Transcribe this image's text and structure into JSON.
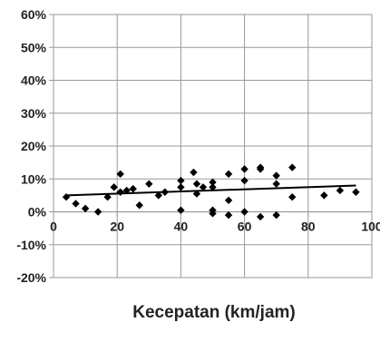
{
  "chart_data": {
    "type": "scatter",
    "title": "",
    "xlabel": "Kecepatan (km/jam)",
    "ylabel": "",
    "xlim": [
      0,
      100
    ],
    "ylim": [
      -20,
      60
    ],
    "x_ticks": [
      {
        "value": 0,
        "label": "0"
      },
      {
        "value": 20,
        "label": "20"
      },
      {
        "value": 40,
        "label": "40"
      },
      {
        "value": 60,
        "label": "60"
      },
      {
        "value": 80,
        "label": "80"
      },
      {
        "value": 100,
        "label": "100"
      }
    ],
    "y_ticks": [
      {
        "value": 60,
        "label": "60%"
      },
      {
        "value": 50,
        "label": "50%"
      },
      {
        "value": 40,
        "label": "40%"
      },
      {
        "value": 30,
        "label": "30%"
      },
      {
        "value": 20,
        "label": "20%"
      },
      {
        "value": 10,
        "label": "10%"
      },
      {
        "value": 0,
        "label": "0%"
      },
      {
        "value": -10,
        "label": "-10%"
      },
      {
        "value": -20,
        "label": "-20%"
      }
    ],
    "grid": true,
    "marker": "diamond",
    "colors": {
      "marker": "#000000",
      "trendline": "#000000",
      "grid": "#999999",
      "axis": "#999999"
    },
    "points": [
      {
        "x": 4,
        "y": 4.5
      },
      {
        "x": 7,
        "y": 2.5
      },
      {
        "x": 10,
        "y": 1
      },
      {
        "x": 14,
        "y": 0
      },
      {
        "x": 17,
        "y": 4.5
      },
      {
        "x": 19,
        "y": 7.5
      },
      {
        "x": 21,
        "y": 11.5
      },
      {
        "x": 21,
        "y": 6
      },
      {
        "x": 23,
        "y": 6.5
      },
      {
        "x": 25,
        "y": 7
      },
      {
        "x": 27,
        "y": 2
      },
      {
        "x": 30,
        "y": 8.5
      },
      {
        "x": 33,
        "y": 5
      },
      {
        "x": 35,
        "y": 6
      },
      {
        "x": 40,
        "y": 9.5
      },
      {
        "x": 40,
        "y": 7.5
      },
      {
        "x": 40,
        "y": 0.5
      },
      {
        "x": 44,
        "y": 12
      },
      {
        "x": 45,
        "y": 8.5
      },
      {
        "x": 45,
        "y": 5.5
      },
      {
        "x": 47,
        "y": 7.5
      },
      {
        "x": 50,
        "y": 9
      },
      {
        "x": 50,
        "y": 7.5
      },
      {
        "x": 50,
        "y": 0.5
      },
      {
        "x": 50,
        "y": -0.5
      },
      {
        "x": 55,
        "y": 11.5
      },
      {
        "x": 55,
        "y": 3.5
      },
      {
        "x": 55,
        "y": -1
      },
      {
        "x": 60,
        "y": 13
      },
      {
        "x": 60,
        "y": 9.5
      },
      {
        "x": 60,
        "y": 0
      },
      {
        "x": 65,
        "y": 13.5
      },
      {
        "x": 65,
        "y": 13
      },
      {
        "x": 65,
        "y": -1.5
      },
      {
        "x": 70,
        "y": 11
      },
      {
        "x": 70,
        "y": 8.5
      },
      {
        "x": 70,
        "y": -1
      },
      {
        "x": 75,
        "y": 13.5
      },
      {
        "x": 75,
        "y": 4.5
      },
      {
        "x": 85,
        "y": 5
      },
      {
        "x": 90,
        "y": 6.5
      },
      {
        "x": 95,
        "y": 6
      }
    ],
    "trendline": {
      "type": "linear",
      "x_start": 4,
      "y_start": 5,
      "x_end": 95,
      "y_end": 8
    }
  }
}
